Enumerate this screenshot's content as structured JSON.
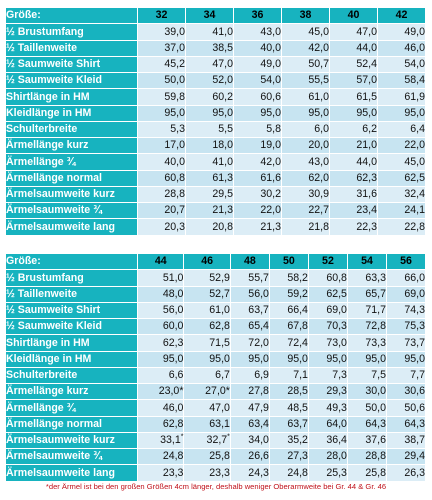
{
  "tables": [
    {
      "header_label": "Größe:",
      "sizes": [
        "32",
        "34",
        "36",
        "38",
        "40",
        "42"
      ],
      "rows": [
        {
          "label": "½ Brustumfang",
          "values": [
            "39,0",
            "41,0",
            "43,0",
            "45,0",
            "47,0",
            "49,0"
          ]
        },
        {
          "label": "½ Taillenweite",
          "values": [
            "37,0",
            "38,5",
            "40,0",
            "42,0",
            "44,0",
            "46,0"
          ]
        },
        {
          "label": "½ Saumweite Shirt",
          "values": [
            "45,2",
            "47,0",
            "49,0",
            "50,7",
            "52,4",
            "54,0"
          ]
        },
        {
          "label": "½ Saumweite Kleid",
          "values": [
            "50,0",
            "52,0",
            "54,0",
            "55,5",
            "57,0",
            "58,4"
          ]
        },
        {
          "label": "Shirtlänge in HM",
          "values": [
            "59,8",
            "60,2",
            "60,6",
            "61,0",
            "61,5",
            "61,9"
          ]
        },
        {
          "label": "Kleidlänge in HM",
          "values": [
            "95,0",
            "95,0",
            "95,0",
            "95,0",
            "95,0",
            "95,0"
          ]
        },
        {
          "label": "Schulterbreite",
          "values": [
            "5,3",
            "5,5",
            "5,8",
            "6,0",
            "6,2",
            "6,4"
          ]
        },
        {
          "label": "Ärmellänge kurz",
          "values": [
            "17,0",
            "18,0",
            "19,0",
            "20,0",
            "21,0",
            "22,0"
          ]
        },
        {
          "label": "Ärmellänge ¾",
          "values": [
            "40,0",
            "41,0",
            "42,0",
            "43,0",
            "44,0",
            "45,0"
          ]
        },
        {
          "label": "Ärmellänge normal",
          "values": [
            "60,8",
            "61,3",
            "61,6",
            "62,0",
            "62,3",
            "62,5"
          ]
        },
        {
          "label": "Ärmelsaumweite kurz",
          "values": [
            "28,8",
            "29,5",
            "30,2",
            "30,9",
            "31,6",
            "32,4"
          ]
        },
        {
          "label": "Ärmelsaumweite ¾",
          "values": [
            "20,7",
            "21,3",
            "22,0",
            "22,7",
            "23,4",
            "24,1"
          ]
        },
        {
          "label": "Ärmelsaumweite lang",
          "values": [
            "20,3",
            "20,8",
            "21,3",
            "21,8",
            "22,3",
            "22,8"
          ]
        }
      ]
    },
    {
      "header_label": "Größe:",
      "sizes": [
        "44",
        "46",
        "48",
        "50",
        "52",
        "54",
        "56"
      ],
      "rows": [
        {
          "label": "½ Brustumfang",
          "values": [
            "51,0",
            "52,9",
            "55,7",
            "58,2",
            "60,8",
            "63,3",
            "66,0"
          ]
        },
        {
          "label": "½ Taillenweite",
          "values": [
            "48,0",
            "52,7",
            "56,0",
            "59,2",
            "62,5",
            "65,7",
            "69,0"
          ]
        },
        {
          "label": "½ Saumweite Shirt",
          "values": [
            "56,0",
            "61,0",
            "63,7",
            "66,4",
            "69,0",
            "71,7",
            "74,3"
          ]
        },
        {
          "label": "½ Saumweite Kleid",
          "values": [
            "60,0",
            "62,8",
            "65,4",
            "67,8",
            "70,3",
            "72,8",
            "75,3"
          ]
        },
        {
          "label": "Shirtlänge in HM",
          "values": [
            "62,3",
            "71,5",
            "72,0",
            "72,4",
            "73,0",
            "73,3",
            "73,7"
          ]
        },
        {
          "label": "Kleidlänge in HM",
          "values": [
            "95,0",
            "95,0",
            "95,0",
            "95,0",
            "95,0",
            "95,0",
            "95,0"
          ]
        },
        {
          "label": "Schulterbreite",
          "values": [
            "6,6",
            "6,7",
            "6,9",
            "7,1",
            "7,3",
            "7,5",
            "7,7"
          ]
        },
        {
          "label": "Ärmellänge kurz",
          "values": [
            "23,0*",
            "27,0*",
            "27,8",
            "28,5",
            "29,3",
            "30,0",
            "30,6"
          ]
        },
        {
          "label": "Ärmellänge ¾",
          "values": [
            "46,0",
            "47,0",
            "47,9",
            "48,5",
            "49,3",
            "50,0",
            "50,6"
          ]
        },
        {
          "label": "Ärmellänge normal",
          "values": [
            "62,8",
            "63,1",
            "63,4",
            "63,7",
            "64,0",
            "64,3",
            "64,3"
          ]
        },
        {
          "label": "Ärmelsaumweite kurz",
          "values": [
            "33,1",
            "32,7",
            "34,0",
            "35,2",
            "36,4",
            "37,6",
            "38,7"
          ],
          "marks": [
            "*",
            "*",
            "",
            "",
            "",
            "",
            ""
          ]
        },
        {
          "label": "Ärmelsaumweite ¾",
          "values": [
            "24,8",
            "25,8",
            "26,6",
            "27,3",
            "28,0",
            "28,8",
            "29,4"
          ]
        },
        {
          "label": "Ärmelsaumweite lang",
          "values": [
            "23,3",
            "23,3",
            "24,3",
            "24,8",
            "25,3",
            "25,8",
            "26,3"
          ]
        }
      ]
    }
  ],
  "footnote": "*der Ärmel ist bei den großen Größen 4cm länger, deshalb weniger Oberarmweite bei Gr. 44 & Gr. 46"
}
